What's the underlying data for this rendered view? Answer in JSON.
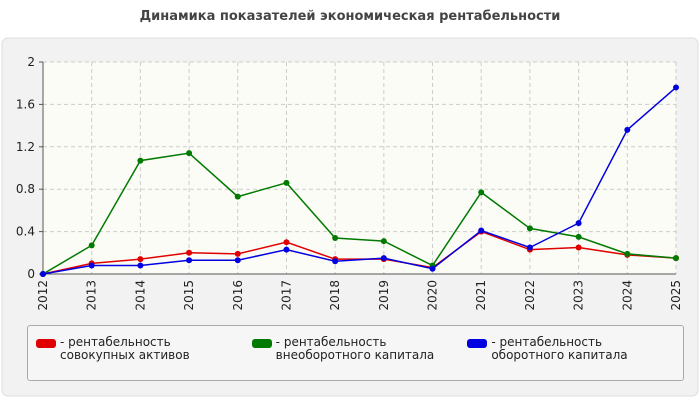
{
  "chart_data": {
    "type": "line",
    "title": "Динамика показателей экономическая рентабельности",
    "x": [
      "2012",
      "2013",
      "2014",
      "2015",
      "2016",
      "2017",
      "2018",
      "2019",
      "2020",
      "2021",
      "2022",
      "2023",
      "2024",
      "2025"
    ],
    "series": [
      {
        "name": "рентабельность совокупных активов",
        "color": "#e00000",
        "values": [
          0,
          0.1,
          0.14,
          0.2,
          0.19,
          0.3,
          0.14,
          0.14,
          0.06,
          0.4,
          0.23,
          0.25,
          0.18,
          0.15
        ]
      },
      {
        "name": "рентабельность внеоборотного капитала",
        "color": "#007a00",
        "values": [
          0,
          0.27,
          1.07,
          1.14,
          0.73,
          0.86,
          0.34,
          0.31,
          0.08,
          0.77,
          0.43,
          0.35,
          0.19,
          0.15
        ]
      },
      {
        "name": "рентабельность оборотного капитала",
        "color": "#0000e0",
        "values": [
          0,
          0.08,
          0.08,
          0.13,
          0.13,
          0.23,
          0.12,
          0.15,
          0.05,
          0.41,
          0.25,
          0.48,
          1.36,
          1.76
        ]
      }
    ],
    "ylim": [
      0,
      2
    ],
    "yticks": [
      0,
      0.4,
      0.8,
      1.2,
      1.6,
      2
    ],
    "grid": true
  }
}
